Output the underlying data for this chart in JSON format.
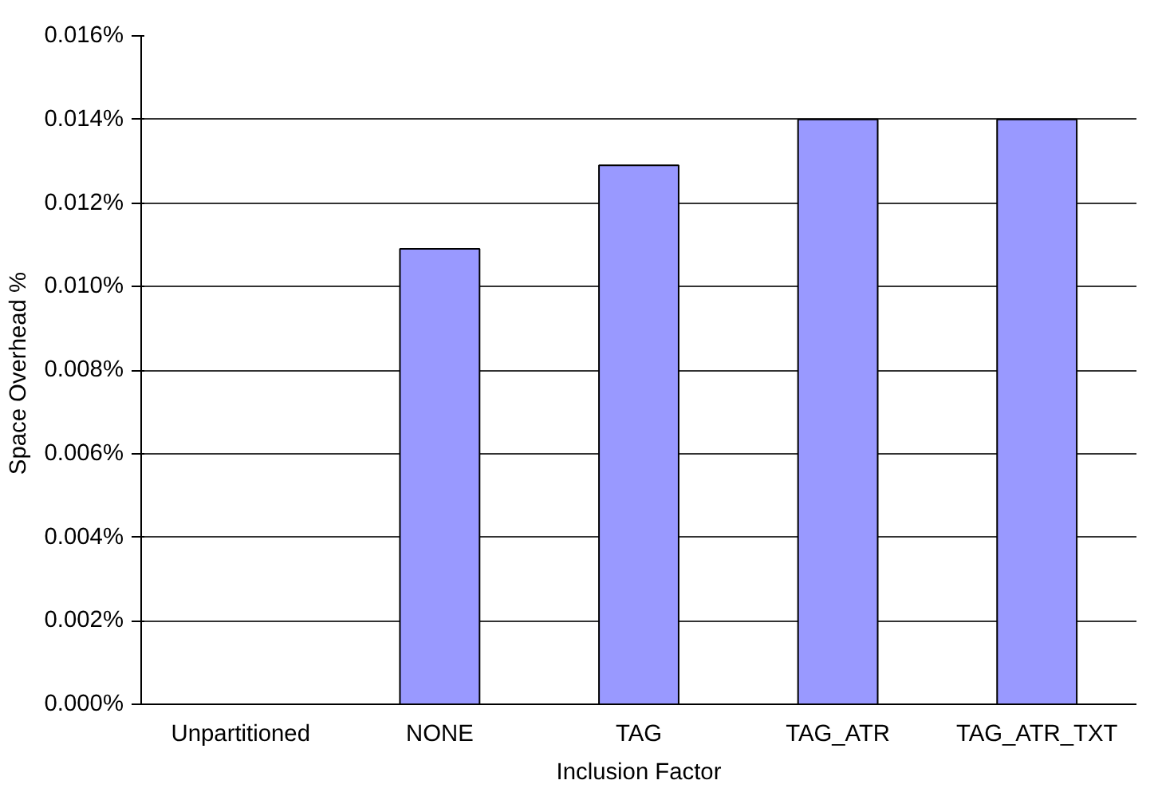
{
  "chart_data": {
    "type": "bar",
    "xlabel": "Inclusion Factor",
    "ylabel": "Space Overhead  %",
    "categories": [
      "Unpartitioned",
      "NONE",
      "TAG",
      "TAG_ATR",
      "TAG_ATR_TXT"
    ],
    "values": [
      0,
      0.0109,
      0.0129,
      0.014,
      0.014
    ],
    "color": "#9999ff",
    "ylim": [
      0,
      0.016
    ],
    "yticks": [
      {
        "value": 0,
        "label": "0.000%"
      },
      {
        "value": 0.002,
        "label": "0.002%"
      },
      {
        "value": 0.004,
        "label": "0.004%"
      },
      {
        "value": 0.006,
        "label": "0.006%"
      },
      {
        "value": 0.008,
        "label": "0.008%"
      },
      {
        "value": 0.01,
        "label": "0.010%"
      },
      {
        "value": 0.012,
        "label": "0.012%"
      },
      {
        "value": 0.014,
        "label": "0.014%"
      },
      {
        "value": 0.016,
        "label": "0.016%"
      }
    ],
    "grid": "y"
  }
}
